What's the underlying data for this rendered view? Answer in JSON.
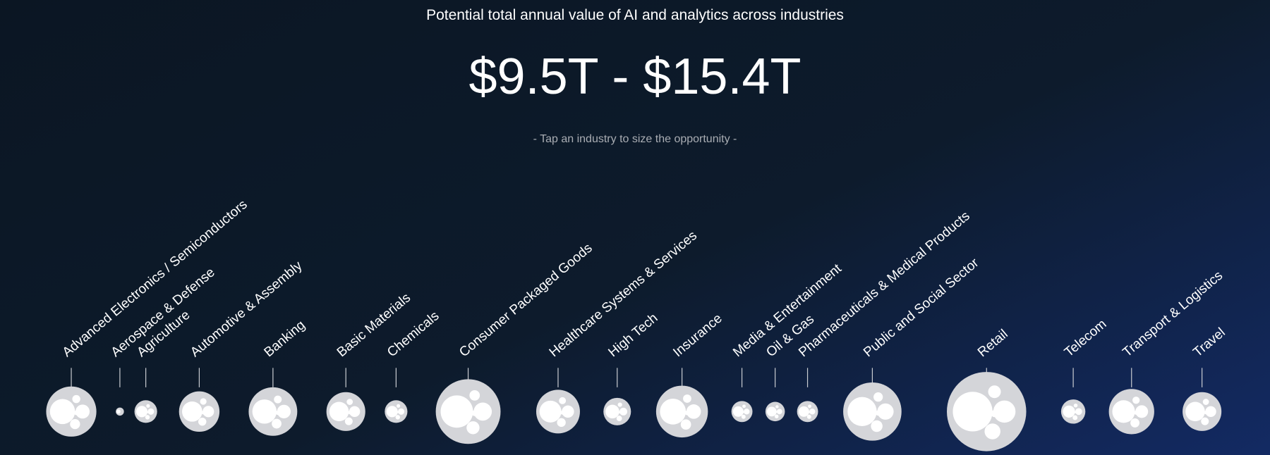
{
  "header": {
    "title": "Potential total annual value of AI and analytics across industries",
    "range": "$9.5T - $15.4T",
    "hint": "- Tap an industry to size the opportunity -"
  },
  "industries": [
    "Advanced Electronics / Semiconductors",
    "Aerospace & Defense",
    "Agriculture",
    "Automotive & Assembly",
    "Banking",
    "Basic Materials",
    "Chemicals",
    "Consumer Packaged Goods",
    "Healthcare Systems & Services",
    "High Tech",
    "Insurance",
    "Media & Entertainment",
    "Oil & Gas",
    "Pharmaceuticals & Medical Products",
    "Public and Social Sector",
    "Retail",
    "Telecom",
    "Transport & Logistics",
    "Travel"
  ]
}
